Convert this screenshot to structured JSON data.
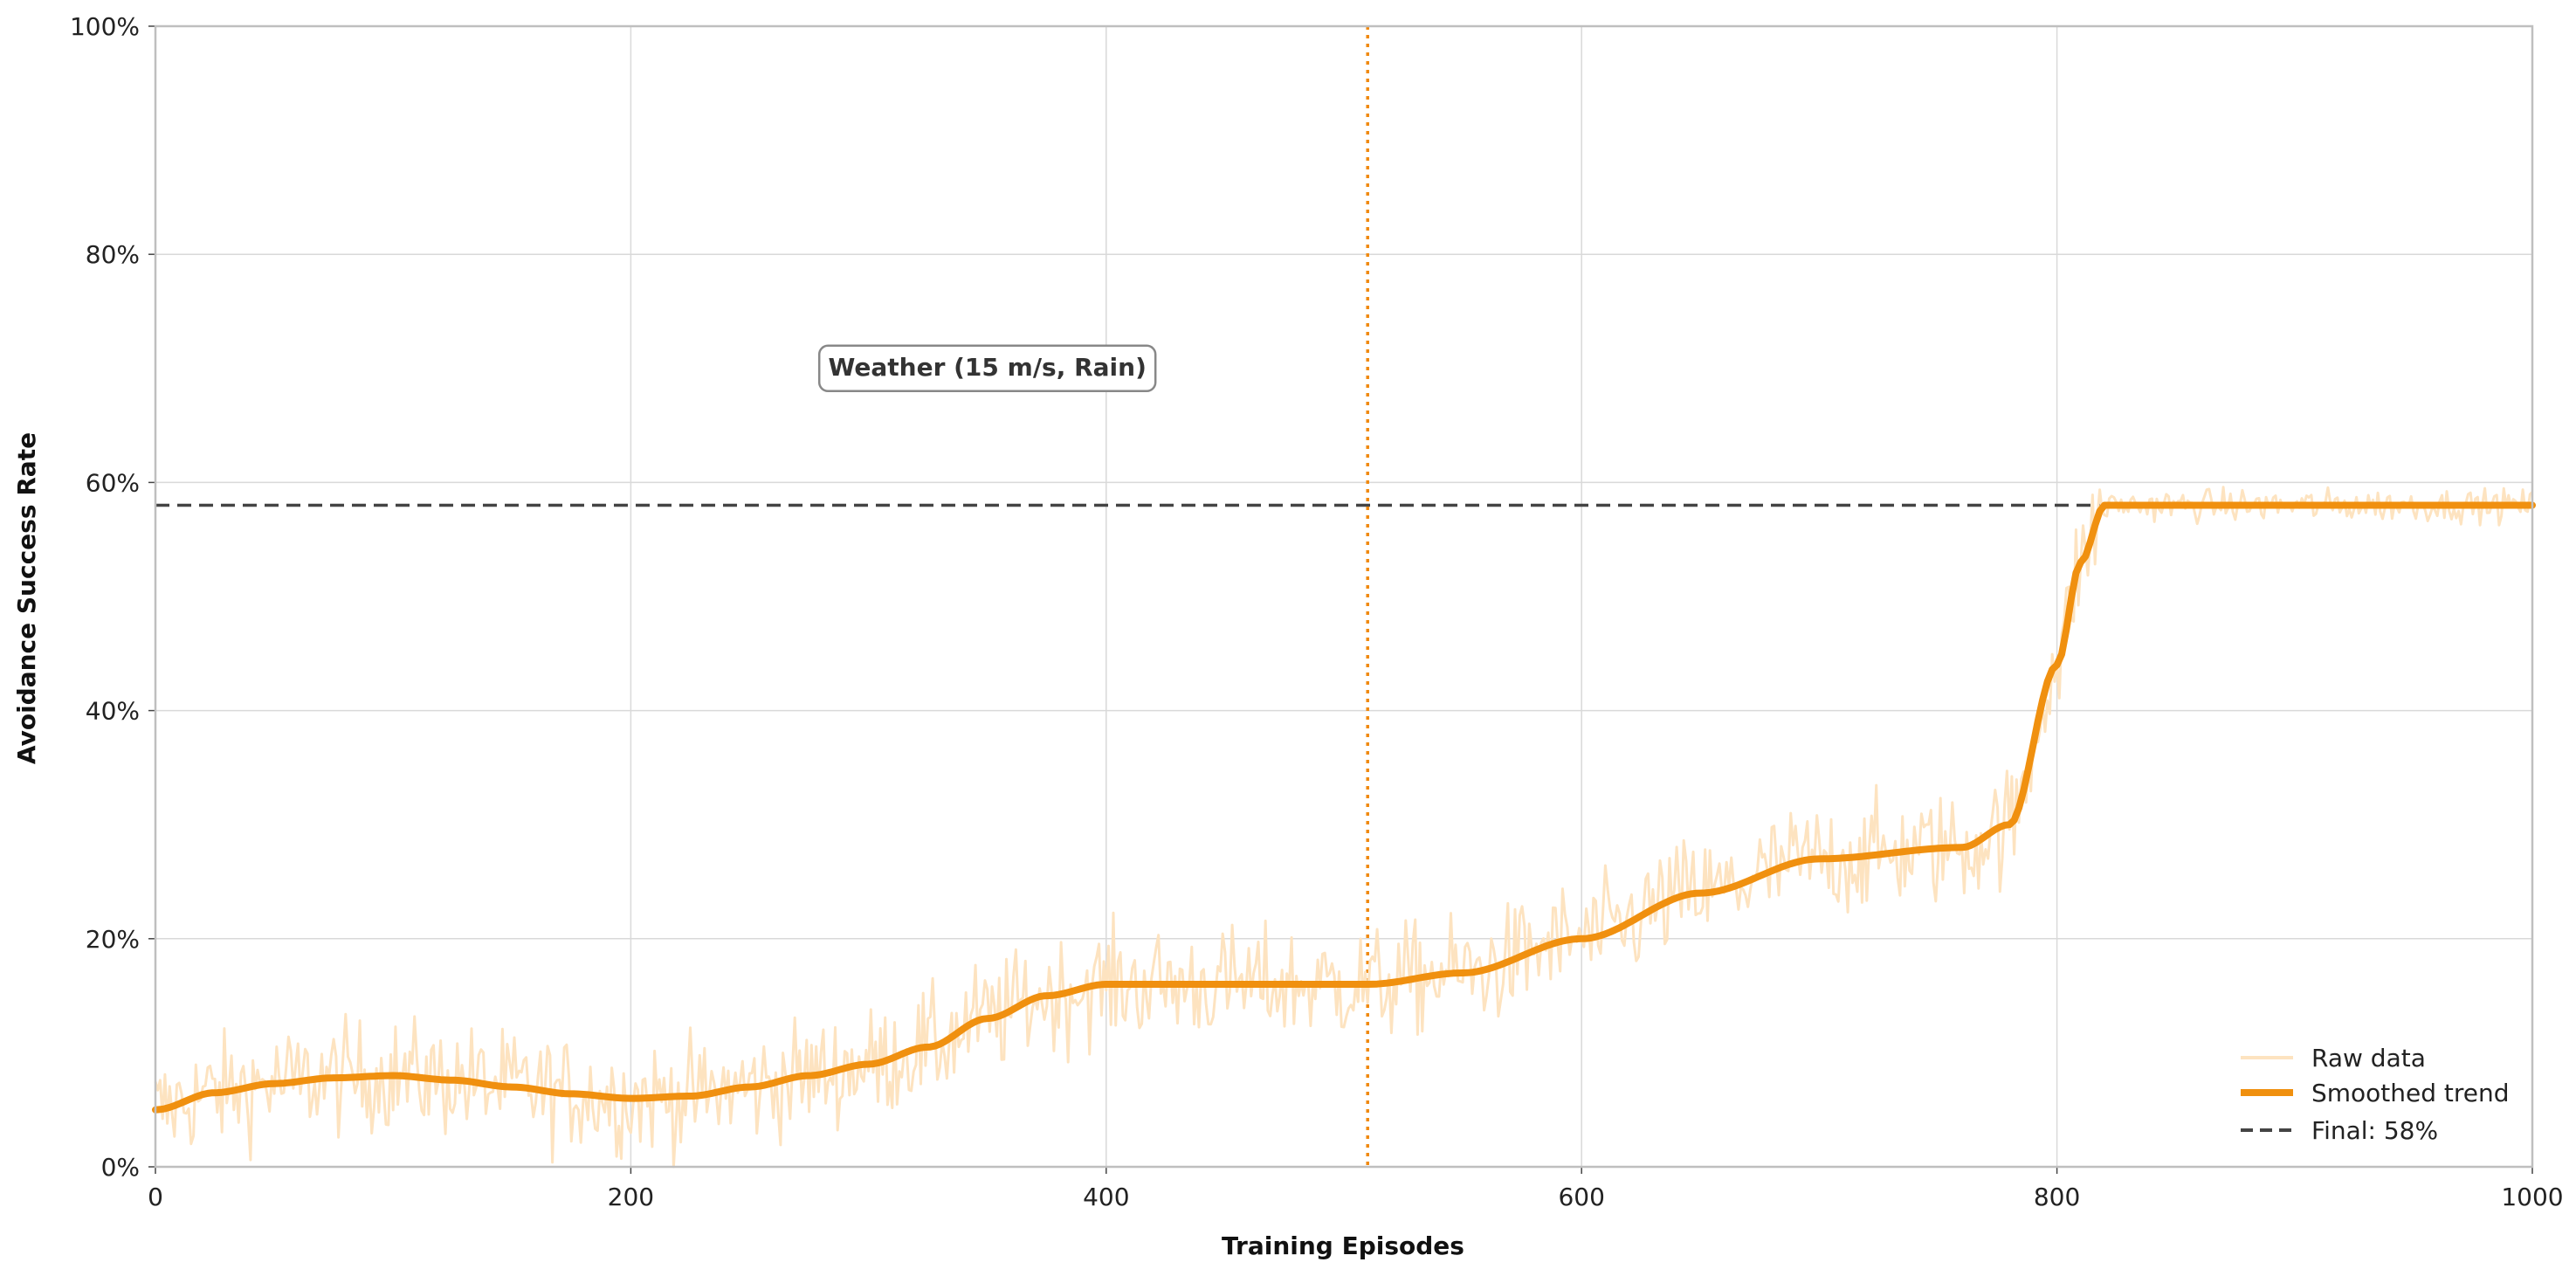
{
  "chart_data": {
    "type": "line",
    "xlabel": "Training Episodes",
    "ylabel": "Avoidance Success Rate",
    "xlim": [
      0,
      1000
    ],
    "ylim": [
      0,
      100
    ],
    "x_ticks": [
      0,
      200,
      400,
      600,
      800,
      1000
    ],
    "y_ticks": [
      "0%",
      "20%",
      "40%",
      "60%",
      "80%",
      "100%"
    ],
    "y_tick_values": [
      0,
      20,
      40,
      60,
      80,
      100
    ],
    "grid": true,
    "legend_position": "bottom-right",
    "annotation": {
      "text": "Weather (15 m/s, Rain)",
      "x": 350,
      "y": 70
    },
    "vertical_marker": {
      "x": 510,
      "style": "dotted",
      "color": "#f0890f"
    },
    "final_line": {
      "value": 58,
      "style": "dashed",
      "color": "#444444"
    },
    "series": [
      {
        "name": "Raw data",
        "color": "#fde3c0",
        "kind": "noisy",
        "noise": 3.5,
        "noise_after_jump": 1
      },
      {
        "name": "Smoothed trend",
        "color": "#f0900f",
        "x": [
          0,
          25,
          50,
          75,
          100,
          125,
          150,
          175,
          200,
          225,
          250,
          275,
          300,
          325,
          350,
          375,
          400,
          450,
          510,
          550,
          600,
          650,
          700,
          760,
          780,
          800,
          810,
          820,
          850,
          900,
          1000
        ],
        "y": [
          5,
          6.5,
          7.3,
          7.8,
          8,
          7.6,
          7,
          6.4,
          6,
          6.2,
          7,
          8,
          9,
          10.5,
          13,
          15,
          16,
          16,
          16,
          17,
          20,
          24,
          27,
          28,
          30,
          44,
          53,
          58,
          58,
          58,
          58
        ]
      },
      {
        "name": "Final: 58%",
        "color": "#444444",
        "x": [
          0,
          1000
        ],
        "y": [
          58,
          58
        ]
      }
    ]
  }
}
